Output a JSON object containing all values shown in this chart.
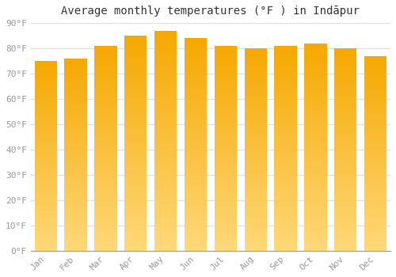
{
  "title": "Average monthly temperatures (°F ) in Indāpur",
  "months": [
    "Jan",
    "Feb",
    "Mar",
    "Apr",
    "May",
    "Jun",
    "Jul",
    "Aug",
    "Sep",
    "Oct",
    "Nov",
    "Dec"
  ],
  "values": [
    75,
    76,
    81,
    85,
    87,
    84,
    81,
    80,
    81,
    82,
    80,
    77
  ],
  "ylim": [
    0,
    90
  ],
  "yticks": [
    0,
    10,
    20,
    30,
    40,
    50,
    60,
    70,
    80,
    90
  ],
  "ytick_labels": [
    "0°F",
    "10°F",
    "20°F",
    "30°F",
    "40°F",
    "50°F",
    "60°F",
    "70°F",
    "80°F",
    "90°F"
  ],
  "bar_color_top": "#F5A800",
  "bar_color_bottom": "#FFD878",
  "background_color": "#ffffff",
  "grid_color": "#e0e0e0",
  "title_fontsize": 10,
  "tick_fontsize": 8,
  "bar_width": 0.75
}
